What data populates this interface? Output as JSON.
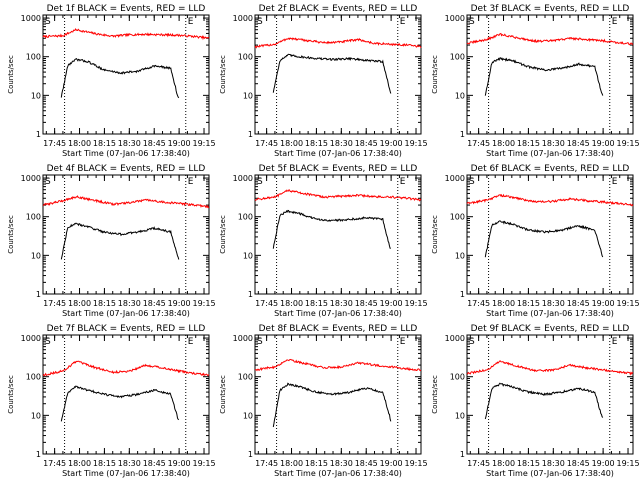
{
  "chart_data": [
    {
      "type": "line",
      "title": "Det 1f BLACK = Events, RED = LLD",
      "xlabel": "Start Time (07-Jan-06 17:38:40)",
      "ylabel": "Counts/sec",
      "x_ticks": [
        "17:45",
        "18:00",
        "18:15",
        "18:30",
        "18:45",
        "19:00",
        "19:15"
      ],
      "y_ticks": [
        "1",
        "10",
        "100",
        "1000"
      ],
      "ylim": [
        1,
        1200
      ],
      "yscale": "log",
      "markers": [
        "S",
        "E"
      ],
      "series": [
        {
          "color": "#ff0000",
          "x": [
            "17:38",
            "17:50",
            "17:58",
            "18:10",
            "18:20",
            "18:30",
            "18:40",
            "18:50",
            "19:00",
            "19:10",
            "19:18"
          ],
          "y": [
            330,
            350,
            500,
            390,
            340,
            370,
            380,
            370,
            360,
            330,
            300
          ]
        },
        {
          "color": "#000000",
          "x": [
            "17:49",
            "17:53",
            "17:58",
            "18:05",
            "18:15",
            "18:25",
            "18:35",
            "18:45",
            "18:55",
            "18:59",
            "19:00"
          ],
          "y": [
            9,
            60,
            85,
            75,
            45,
            38,
            42,
            58,
            50,
            10,
            8
          ]
        }
      ]
    },
    {
      "type": "line",
      "title": "Det 2f BLACK = Events, RED = LLD",
      "xlabel": "Start Time (07-Jan-06 17:38:40)",
      "ylabel": "Counts/sec",
      "x_ticks": [
        "17:45",
        "18:00",
        "18:15",
        "18:30",
        "18:45",
        "19:00",
        "19:15"
      ],
      "y_ticks": [
        "1",
        "10",
        "100",
        "1000"
      ],
      "ylim": [
        1,
        1200
      ],
      "yscale": "log",
      "markers": [
        "S",
        "E"
      ],
      "series": [
        {
          "color": "#ff0000",
          "x": [
            "17:38",
            "17:50",
            "17:58",
            "18:10",
            "18:20",
            "18:30",
            "18:40",
            "18:50",
            "19:00",
            "19:10",
            "19:18"
          ],
          "y": [
            180,
            210,
            300,
            260,
            230,
            240,
            280,
            220,
            210,
            200,
            180
          ]
        },
        {
          "color": "#000000",
          "x": [
            "17:49",
            "17:53",
            "17:58",
            "18:05",
            "18:15",
            "18:25",
            "18:35",
            "18:45",
            "18:55",
            "18:59",
            "19:00"
          ],
          "y": [
            12,
            80,
            110,
            100,
            90,
            85,
            90,
            80,
            75,
            15,
            10
          ]
        }
      ]
    },
    {
      "type": "line",
      "title": "Det 3f BLACK = Events, RED = LLD",
      "xlabel": "Start Time (07-Jan-06 17:38:40)",
      "ylabel": "Counts/sec",
      "x_ticks": [
        "17:45",
        "18:00",
        "18:15",
        "18:30",
        "18:45",
        "19:00",
        "19:15"
      ],
      "y_ticks": [
        "1",
        "10",
        "100",
        "1000"
      ],
      "ylim": [
        1,
        1200
      ],
      "yscale": "log",
      "markers": [
        "S",
        "E"
      ],
      "series": [
        {
          "color": "#ff0000",
          "x": [
            "17:38",
            "17:50",
            "17:58",
            "18:10",
            "18:20",
            "18:30",
            "18:40",
            "18:50",
            "19:00",
            "19:10",
            "19:18"
          ],
          "y": [
            220,
            280,
            380,
            300,
            250,
            260,
            300,
            280,
            260,
            230,
            210
          ]
        },
        {
          "color": "#000000",
          "x": [
            "17:49",
            "17:53",
            "17:58",
            "18:05",
            "18:15",
            "18:25",
            "18:35",
            "18:45",
            "18:55",
            "18:59",
            "19:00"
          ],
          "y": [
            10,
            70,
            90,
            80,
            55,
            45,
            50,
            65,
            55,
            12,
            9
          ]
        }
      ]
    },
    {
      "type": "line",
      "title": "Det 4f BLACK = Events, RED = LLD",
      "xlabel": "Start Time (07-Jan-06 17:38:40)",
      "ylabel": "Counts/sec",
      "x_ticks": [
        "17:45",
        "18:00",
        "18:15",
        "18:30",
        "18:45",
        "19:00",
        "19:15"
      ],
      "y_ticks": [
        "1",
        "10",
        "100",
        "1000"
      ],
      "ylim": [
        1,
        1200
      ],
      "yscale": "log",
      "markers": [
        "S",
        "E"
      ],
      "series": [
        {
          "color": "#ff0000",
          "x": [
            "17:38",
            "17:50",
            "17:58",
            "18:10",
            "18:20",
            "18:30",
            "18:40",
            "18:50",
            "19:00",
            "19:10",
            "19:18"
          ],
          "y": [
            200,
            260,
            330,
            260,
            210,
            230,
            270,
            240,
            220,
            200,
            180
          ]
        },
        {
          "color": "#000000",
          "x": [
            "17:49",
            "17:53",
            "17:58",
            "18:05",
            "18:15",
            "18:25",
            "18:35",
            "18:45",
            "18:55",
            "18:59",
            "19:00"
          ],
          "y": [
            8,
            55,
            65,
            55,
            40,
            35,
            40,
            50,
            40,
            10,
            7
          ]
        }
      ]
    },
    {
      "type": "line",
      "title": "Det 5f BLACK = Events, RED = LLD",
      "xlabel": "Start Time (07-Jan-06 17:38:40)",
      "ylabel": "Counts/sec",
      "x_ticks": [
        "17:45",
        "18:00",
        "18:15",
        "18:30",
        "18:45",
        "19:00",
        "19:15"
      ],
      "y_ticks": [
        "1",
        "10",
        "100",
        "1000"
      ],
      "ylim": [
        1,
        1200
      ],
      "yscale": "log",
      "markers": [
        "S",
        "E"
      ],
      "series": [
        {
          "color": "#ff0000",
          "x": [
            "17:38",
            "17:50",
            "17:58",
            "18:10",
            "18:20",
            "18:30",
            "18:40",
            "18:50",
            "19:00",
            "19:10",
            "19:18"
          ],
          "y": [
            280,
            320,
            480,
            380,
            320,
            340,
            360,
            330,
            320,
            300,
            270
          ]
        },
        {
          "color": "#000000",
          "x": [
            "17:49",
            "17:53",
            "17:58",
            "18:05",
            "18:15",
            "18:25",
            "18:35",
            "18:45",
            "18:55",
            "18:59",
            "19:00"
          ],
          "y": [
            15,
            110,
            140,
            120,
            85,
            80,
            85,
            95,
            85,
            18,
            14
          ]
        }
      ]
    },
    {
      "type": "line",
      "title": "Det 6f BLACK = Events, RED = LLD",
      "xlabel": "Start Time (07-Jan-06 17:38:40)",
      "ylabel": "Counts/sec",
      "x_ticks": [
        "17:45",
        "18:00",
        "18:15",
        "18:30",
        "18:45",
        "19:00",
        "19:15"
      ],
      "y_ticks": [
        "1",
        "10",
        "100",
        "1000"
      ],
      "ylim": [
        1,
        1200
      ],
      "yscale": "log",
      "markers": [
        "S",
        "E"
      ],
      "series": [
        {
          "color": "#ff0000",
          "x": [
            "17:38",
            "17:50",
            "17:58",
            "18:10",
            "18:20",
            "18:30",
            "18:40",
            "18:50",
            "19:00",
            "19:10",
            "19:18"
          ],
          "y": [
            220,
            270,
            360,
            290,
            240,
            250,
            290,
            260,
            240,
            220,
            200
          ]
        },
        {
          "color": "#000000",
          "x": [
            "17:49",
            "17:53",
            "17:58",
            "18:05",
            "18:15",
            "18:25",
            "18:35",
            "18:45",
            "18:55",
            "18:59",
            "19:00"
          ],
          "y": [
            9,
            60,
            75,
            65,
            45,
            40,
            45,
            58,
            45,
            12,
            8
          ]
        }
      ]
    },
    {
      "type": "line",
      "title": "Det 7f BLACK = Events, RED = LLD",
      "xlabel": "Start Time (07-Jan-06 17:38:40)",
      "ylabel": "Counts/sec",
      "x_ticks": [
        "17:45",
        "18:00",
        "18:15",
        "18:30",
        "18:45",
        "19:00",
        "19:15"
      ],
      "y_ticks": [
        "1",
        "10",
        "100",
        "1000"
      ],
      "ylim": [
        1,
        1200
      ],
      "yscale": "log",
      "markers": [
        "S",
        "E"
      ],
      "series": [
        {
          "color": "#ff0000",
          "x": [
            "17:38",
            "17:50",
            "17:58",
            "18:10",
            "18:20",
            "18:30",
            "18:40",
            "18:50",
            "19:00",
            "19:10",
            "19:18"
          ],
          "y": [
            110,
            140,
            250,
            170,
            130,
            140,
            200,
            170,
            140,
            120,
            110
          ]
        },
        {
          "color": "#000000",
          "x": [
            "17:49",
            "17:53",
            "17:58",
            "18:05",
            "18:15",
            "18:25",
            "18:35",
            "18:45",
            "18:55",
            "18:59",
            "19:00"
          ],
          "y": [
            7,
            40,
            55,
            45,
            35,
            30,
            35,
            45,
            35,
            9,
            7
          ]
        }
      ]
    },
    {
      "type": "line",
      "title": "Det 8f BLACK = Events, RED = LLD",
      "xlabel": "Start Time (07-Jan-06 17:38:40)",
      "ylabel": "Counts/sec",
      "x_ticks": [
        "17:45",
        "18:00",
        "18:15",
        "18:30",
        "18:45",
        "19:00",
        "19:15"
      ],
      "y_ticks": [
        "1",
        "10",
        "100",
        "1000"
      ],
      "ylim": [
        1,
        1200
      ],
      "yscale": "log",
      "markers": [
        "S",
        "E"
      ],
      "series": [
        {
          "color": "#ff0000",
          "x": [
            "17:38",
            "17:50",
            "17:58",
            "18:10",
            "18:20",
            "18:30",
            "18:40",
            "18:50",
            "19:00",
            "19:10",
            "19:18"
          ],
          "y": [
            150,
            180,
            280,
            210,
            170,
            180,
            230,
            200,
            180,
            160,
            150
          ]
        },
        {
          "color": "#000000",
          "x": [
            "17:49",
            "17:53",
            "17:58",
            "18:05",
            "18:15",
            "18:25",
            "18:35",
            "18:45",
            "18:55",
            "18:59",
            "19:00"
          ],
          "y": [
            5,
            45,
            65,
            55,
            40,
            35,
            40,
            50,
            40,
            10,
            6
          ]
        }
      ]
    },
    {
      "type": "line",
      "title": "Det 9f BLACK = Events, RED = LLD",
      "xlabel": "Start Time (07-Jan-06 17:38:40)",
      "ylabel": "Counts/sec",
      "x_ticks": [
        "17:45",
        "18:00",
        "18:15",
        "18:30",
        "18:45",
        "19:00",
        "19:15"
      ],
      "y_ticks": [
        "1",
        "10",
        "100",
        "1000"
      ],
      "ylim": [
        1,
        1200
      ],
      "yscale": "log",
      "markers": [
        "S",
        "E"
      ],
      "series": [
        {
          "color": "#ff0000",
          "x": [
            "17:38",
            "17:50",
            "17:58",
            "18:10",
            "18:20",
            "18:30",
            "18:40",
            "18:50",
            "19:00",
            "19:10",
            "19:18"
          ],
          "y": [
            120,
            150,
            250,
            180,
            140,
            150,
            200,
            170,
            150,
            130,
            120
          ]
        },
        {
          "color": "#000000",
          "x": [
            "17:49",
            "17:53",
            "17:58",
            "18:05",
            "18:15",
            "18:25",
            "18:35",
            "18:45",
            "18:55",
            "18:59",
            "19:00"
          ],
          "y": [
            8,
            50,
            65,
            55,
            40,
            35,
            40,
            50,
            40,
            10,
            8
          ]
        }
      ]
    }
  ]
}
